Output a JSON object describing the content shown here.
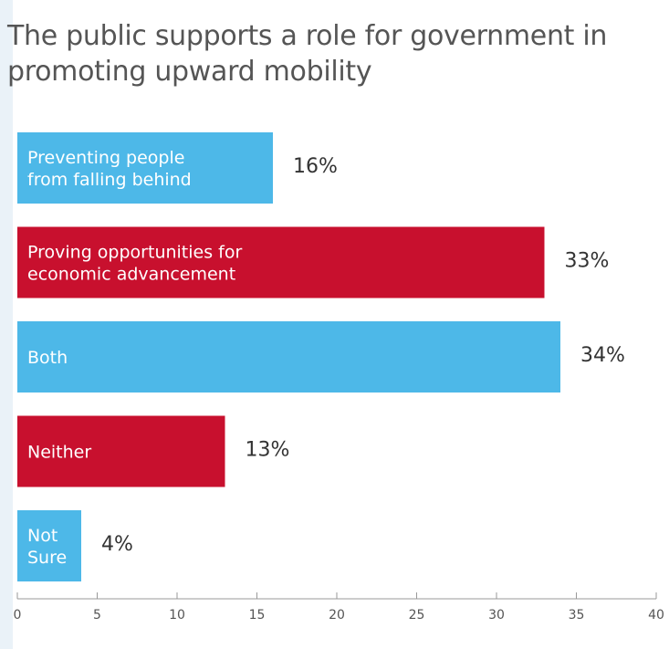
{
  "chart_data": {
    "type": "bar",
    "orientation": "horizontal",
    "title": "The public supports a role for government in promoting upward mobility",
    "categories": [
      [
        "Preventing people",
        "from falling behind"
      ],
      [
        "Proving opportunities for",
        "economic advancement"
      ],
      [
        "Both"
      ],
      [
        "Neither"
      ],
      [
        "Not",
        "Sure"
      ]
    ],
    "values": [
      16,
      33,
      34,
      13,
      4
    ],
    "value_labels": [
      "16%",
      "33%",
      "34%",
      "13%",
      "4%"
    ],
    "bar_colors": [
      "#4db8e8",
      "#c8102e",
      "#4db8e8",
      "#c8102e",
      "#4db8e8"
    ],
    "xlim": [
      0,
      40
    ],
    "xticks": [
      0,
      5,
      10,
      15,
      20,
      25,
      30,
      35,
      40
    ],
    "xlabel": "",
    "ylabel": "",
    "grid": false,
    "legend": "none"
  }
}
